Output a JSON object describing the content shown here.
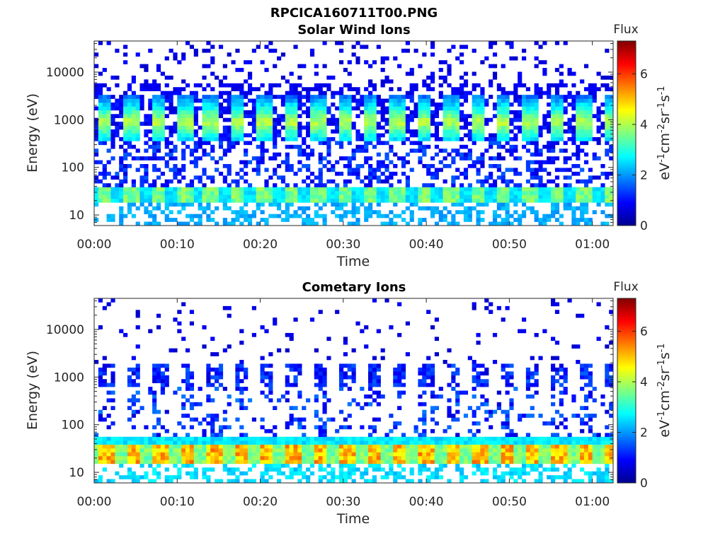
{
  "figure_title": "RPCICA160711T00.PNG",
  "chart_data": [
    {
      "type": "heatmap",
      "title": "Solar Wind Ions",
      "xlabel": "Time",
      "ylabel": "Energy (eV)",
      "x_ticks": [
        "00:00",
        "00:10",
        "00:20",
        "00:30",
        "00:40",
        "00:50",
        "01:00"
      ],
      "x_range_minutes": [
        0,
        62.5
      ],
      "y_scale": "log",
      "y_ticks": [
        "10",
        "100",
        "1000",
        "10000"
      ],
      "y_range": [
        6,
        45000
      ],
      "colorbar": {
        "title": "Flux",
        "label": "eV-1cm-2sr-1s-1",
        "ticks": [
          "0",
          "2",
          "4",
          "6"
        ],
        "range": [
          0,
          7.3
        ]
      },
      "features": [
        {
          "energy_range": [
            400,
            3500
          ],
          "flux": 3.5,
          "description": "periodic bursts at ~3.2 min cadence",
          "rows_from": 0.6,
          "rows_to": 1.0
        },
        {
          "energy_range": [
            18,
            40
          ],
          "flux": 3.6,
          "description": "periodic low-energy band"
        },
        {
          "energy_range": [
            40,
            40000
          ],
          "flux": 1.0,
          "description": "sparse background"
        }
      ]
    },
    {
      "type": "heatmap",
      "title": "Cometary Ions",
      "xlabel": "Time",
      "ylabel": "Energy (eV)",
      "x_ticks": [
        "00:00",
        "00:10",
        "00:20",
        "00:30",
        "00:40",
        "00:50",
        "01:00"
      ],
      "x_range_minutes": [
        0,
        62.5
      ],
      "y_scale": "log",
      "y_ticks": [
        "10",
        "100",
        "1000",
        "10000"
      ],
      "y_range": [
        6,
        45000
      ],
      "colorbar": {
        "title": "Flux",
        "label": "eV-1cm-2sr-1s-1",
        "ticks": [
          "0",
          "2",
          "4",
          "6"
        ],
        "range": [
          0,
          7.3
        ]
      },
      "features": [
        {
          "energy_range": [
            15,
            40
          ],
          "flux": 5.2,
          "description": "strong periodic low-energy band"
        },
        {
          "energy_range": [
            600,
            1800
          ],
          "flux": 1.2,
          "description": "periodic blue bursts"
        },
        {
          "energy_range": [
            40,
            40000
          ],
          "flux": 0.8,
          "description": "sparse background"
        }
      ]
    }
  ]
}
